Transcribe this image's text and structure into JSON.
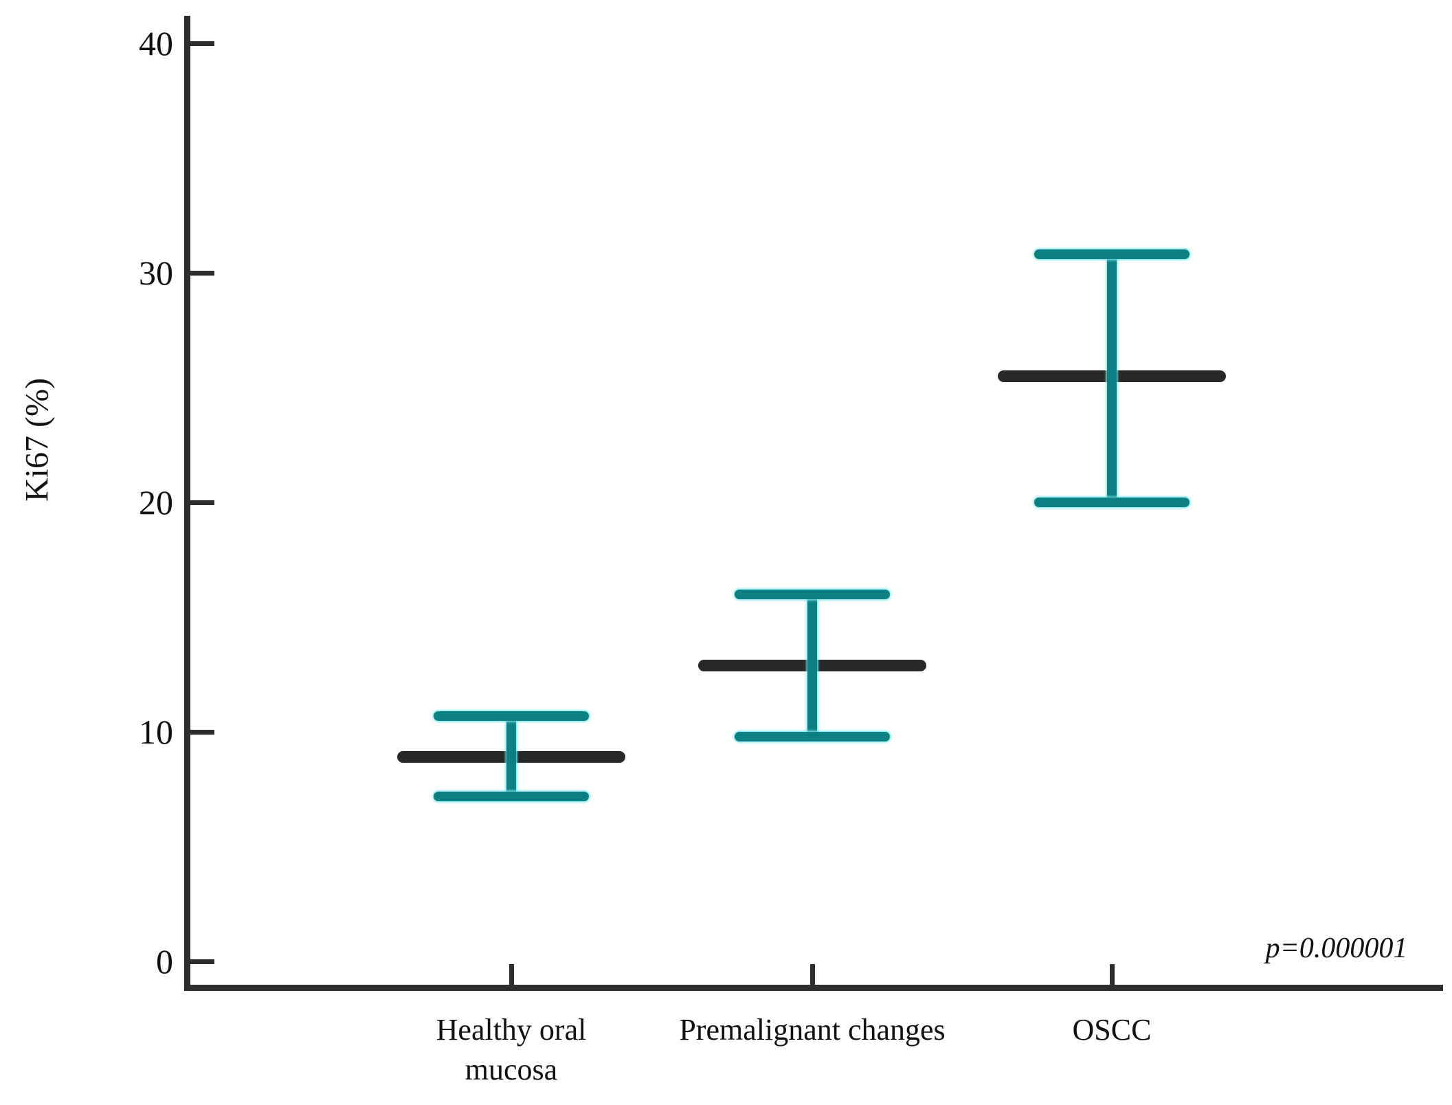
{
  "chart_data": {
    "type": "errorbar",
    "title": "",
    "xlabel": "",
    "ylabel": "Ki67 (%)",
    "ylim": [
      0,
      40
    ],
    "yticks": [
      40,
      30,
      20,
      10,
      0
    ],
    "grid": false,
    "legend": "none",
    "annotation": "p=0.000001",
    "groups": [
      {
        "label": "Healthy oral\nmucosa",
        "mean": 8.9,
        "upper": 10.7,
        "lower": 7.2
      },
      {
        "label": "Premalignant changes",
        "mean": 12.9,
        "upper": 16.0,
        "lower": 9.8
      },
      {
        "label": "OSCC",
        "mean": 25.5,
        "upper": 30.8,
        "lower": 20.0
      }
    ],
    "colors": {
      "error_bar": "#0d8083",
      "error_glow": "#7ce6ea",
      "mean_bar": "#282828",
      "axis": "#2e2e2e"
    }
  }
}
